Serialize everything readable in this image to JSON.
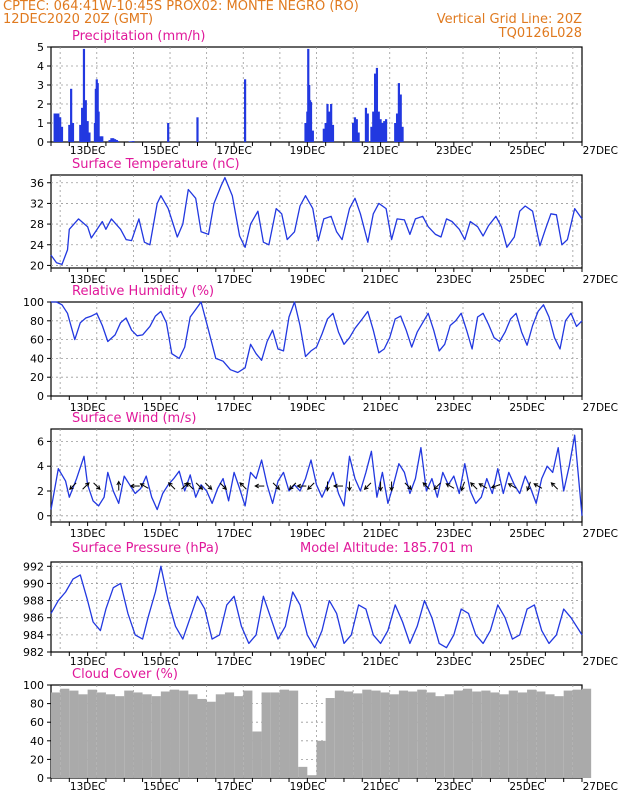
{
  "header": {
    "line1_left": "CPTEC:  064:41W-10:45S  PROX02: MONTE NEGRO (RO)",
    "line2_left": "12DEC2020 20Z (GMT)",
    "line2_right": "Vertical Grid Line: 20Z",
    "line3_right": "TQ0126L028"
  },
  "colors": {
    "header": "#e07a1f",
    "title": "#e0189a",
    "series": "#2238e0",
    "bars": "#2238e0",
    "cloud": "#aaaaaa",
    "grid": "#9a9a9a",
    "arrow": "#000000"
  },
  "x_tick_labels": [
    "13DEC",
    "15DEC",
    "17DEC",
    "19DEC",
    "21DEC",
    "23DEC",
    "25DEC",
    "27DEC"
  ],
  "chart_data": [
    {
      "type": "bar",
      "title": "Precipitation (mm/h)",
      "ylim": [
        0,
        5
      ],
      "yticks": [
        0,
        1,
        2,
        3,
        4,
        5
      ],
      "x": [
        0.2,
        0.3,
        0.4,
        0.5,
        0.6,
        1.0,
        1.1,
        1.2,
        1.6,
        1.7,
        1.8,
        1.9,
        2.0,
        2.1,
        2.4,
        2.45,
        2.5,
        2.55,
        2.6,
        2.7,
        2.8,
        3.2,
        3.3,
        3.4,
        3.45,
        3.5,
        3.55,
        3.6,
        3.65,
        4.3,
        4.4,
        4.5,
        6.4,
        8.0,
        10.6,
        13.9,
        14.0,
        14.05,
        14.1,
        14.15,
        14.2,
        14.3,
        14.9,
        15.0,
        15.1,
        15.15,
        15.2,
        15.3,
        15.4,
        16.5,
        16.6,
        16.7,
        16.8,
        17.2,
        17.3,
        17.5,
        17.6,
        17.7,
        17.8,
        17.9,
        18.0,
        18.1,
        18.2,
        18.3,
        18.8,
        18.9,
        19.0,
        19.1,
        19.2
      ],
      "values": [
        1.5,
        1.5,
        1.5,
        1.3,
        0.8,
        0.9,
        2.8,
        1.0,
        0.9,
        1.8,
        4.9,
        2.2,
        1.1,
        0.5,
        1.0,
        2.8,
        3.3,
        3.1,
        1.6,
        0.3,
        0.3,
        0.1,
        0.2,
        0.2,
        0.1,
        0.15,
        0.1,
        0.1,
        0.05,
        0.03,
        0.04,
        0.05,
        1.0,
        1.3,
        3.3,
        1.0,
        1.6,
        4.9,
        3.0,
        2.2,
        2.1,
        0.6,
        0.7,
        1.0,
        2.0,
        1.5,
        1.6,
        2.0,
        0.9,
        1.0,
        1.3,
        1.2,
        0.5,
        1.8,
        1.5,
        0.8,
        1.6,
        3.6,
        3.9,
        1.6,
        1.2,
        1.0,
        1.1,
        1.2,
        1.0,
        1.5,
        3.1,
        2.5,
        0.8
      ]
    },
    {
      "type": "line",
      "title": "Surface Temperature (nC)",
      "ylim": [
        19.5,
        37.5
      ],
      "yticks": [
        20,
        24,
        28,
        32,
        36
      ],
      "x": [
        0,
        0.3,
        0.6,
        0.9,
        1.0,
        1.5,
        2.0,
        2.2,
        2.8,
        3.0,
        3.3,
        3.8,
        4.1,
        4.4,
        4.8,
        5.1,
        5.4,
        5.8,
        6.0,
        6.4,
        6.9,
        7.2,
        7.5,
        7.9,
        8.2,
        8.6,
        8.9,
        9.3,
        9.5,
        9.9,
        10.3,
        10.6,
        10.9,
        11.3,
        11.6,
        11.9,
        12.3,
        12.6,
        12.9,
        13.3,
        13.6,
        13.9,
        14.3,
        14.6,
        14.9,
        15.3,
        15.6,
        15.9,
        16.3,
        16.6,
        16.9,
        17.3,
        17.6,
        17.9,
        18.3,
        18.6,
        18.9,
        19.3,
        19.6,
        19.9,
        20.3,
        20.6,
        21.0,
        21.3,
        21.6,
        21.9,
        22.3,
        22.6,
        22.9,
        23.3,
        23.6,
        23.9,
        24.3,
        24.6,
        24.9,
        25.3,
        25.6,
        25.9,
        26.3,
        26.7,
        27.0,
        27.3,
        27.6,
        27.9,
        28.2,
        28.6,
        29.0
      ],
      "values": [
        22,
        20.5,
        20.2,
        23,
        27,
        29,
        27.5,
        25.3,
        28.5,
        27,
        29,
        27,
        25,
        24.8,
        29,
        24.5,
        24,
        32,
        33.5,
        31,
        25.5,
        28,
        34.7,
        33,
        26.5,
        26,
        32,
        35.5,
        37,
        33.5,
        25.7,
        23.5,
        28,
        30.5,
        24.5,
        24,
        31,
        30,
        25,
        26.5,
        31.5,
        33.5,
        31,
        24.8,
        29,
        29.5,
        26.5,
        25,
        31,
        33,
        30,
        24.5,
        30,
        32,
        31,
        25,
        29,
        28.8,
        26,
        29,
        29.5,
        27.5,
        26,
        25.5,
        29,
        28.5,
        27,
        25,
        28.5,
        27.5,
        25.7,
        27.7,
        29.5,
        27.5,
        23.5,
        25.5,
        30.5,
        31.5,
        30.5,
        23.8,
        27,
        30,
        29.8,
        24,
        25,
        31,
        29
      ]
    },
    {
      "type": "line",
      "title": "Relative Humidity (%)",
      "ylim": [
        0,
        100
      ],
      "yticks": [
        0,
        20,
        40,
        60,
        80,
        100
      ],
      "x": [
        0,
        0.3,
        0.6,
        0.9,
        1.3,
        1.6,
        1.9,
        2.2,
        2.5,
        2.8,
        3.1,
        3.5,
        3.8,
        4.1,
        4.4,
        4.7,
        5.0,
        5.4,
        5.7,
        6.0,
        6.3,
        6.6,
        7.0,
        7.3,
        7.6,
        7.9,
        8.2,
        8.6,
        9.0,
        9.4,
        9.8,
        10.2,
        10.6,
        10.9,
        11.2,
        11.5,
        11.8,
        12.1,
        12.4,
        12.7,
        13.0,
        13.3,
        13.6,
        13.9,
        14.2,
        14.5,
        14.8,
        15.1,
        15.4,
        15.7,
        16.0,
        16.3,
        16.6,
        17.0,
        17.3,
        17.6,
        17.9,
        18.2,
        18.5,
        18.8,
        19.1,
        19.4,
        19.7,
        20.0,
        20.3,
        20.6,
        20.9,
        21.2,
        21.5,
        21.8,
        22.1,
        22.4,
        22.7,
        23.0,
        23.3,
        23.6,
        23.9,
        24.2,
        24.5,
        24.8,
        25.1,
        25.4,
        25.7,
        26.0,
        26.3,
        26.6,
        26.9,
        27.2,
        27.5,
        27.8,
        28.1,
        28.4,
        28.7,
        29.0
      ],
      "values": [
        100,
        100,
        97,
        88,
        60,
        78,
        83,
        85,
        88,
        75,
        58,
        65,
        78,
        83,
        70,
        64,
        65,
        74,
        85,
        90,
        78,
        45,
        40,
        52,
        84,
        92,
        100,
        70,
        40,
        37,
        28,
        25,
        30,
        55,
        45,
        38,
        58,
        70,
        50,
        48,
        84,
        100,
        75,
        42,
        48,
        52,
        66,
        82,
        88,
        68,
        55,
        62,
        72,
        82,
        90,
        70,
        46,
        50,
        62,
        82,
        85,
        70,
        52,
        68,
        78,
        88,
        70,
        48,
        55,
        75,
        80,
        88,
        70,
        50,
        84,
        88,
        76,
        62,
        58,
        68,
        82,
        88,
        68,
        54,
        75,
        90,
        97,
        84,
        62,
        50,
        80,
        88,
        74,
        80
      ]
    },
    {
      "type": "line",
      "title": "Surface Wind (m/s)",
      "ylim": [
        -0.5,
        7
      ],
      "yticks": [
        0,
        2,
        4,
        6
      ],
      "x": [
        0,
        0.4,
        0.8,
        1.0,
        1.4,
        1.8,
        2.0,
        2.3,
        2.6,
        2.9,
        3.1,
        3.4,
        3.7,
        4.0,
        4.3,
        4.6,
        4.9,
        5.2,
        5.5,
        5.8,
        6.1,
        6.4,
        6.7,
        7.0,
        7.3,
        7.6,
        7.9,
        8.2,
        8.5,
        8.8,
        9.1,
        9.4,
        9.7,
        10.0,
        10.3,
        10.6,
        10.9,
        11.2,
        11.5,
        11.8,
        12.1,
        12.4,
        12.7,
        13.0,
        13.3,
        13.6,
        13.9,
        14.2,
        14.5,
        14.8,
        15.1,
        15.4,
        15.7,
        16.0,
        16.3,
        16.6,
        16.9,
        17.2,
        17.5,
        17.8,
        18.1,
        18.4,
        18.7,
        19.0,
        19.3,
        19.6,
        19.9,
        20.2,
        20.5,
        20.8,
        21.1,
        21.4,
        21.7,
        22.0,
        22.3,
        22.6,
        22.9,
        23.2,
        23.5,
        23.8,
        24.1,
        24.4,
        24.7,
        25.0,
        25.3,
        25.6,
        25.9,
        26.2,
        26.5,
        26.8,
        27.1,
        27.4,
        27.7,
        28.0,
        28.3,
        28.6,
        29.0
      ],
      "values": [
        0.5,
        3.8,
        2.8,
        1.5,
        3.0,
        4.8,
        2.5,
        1.2,
        0.8,
        1.5,
        3.5,
        2.0,
        1.0,
        3.2,
        2.5,
        1.8,
        2.2,
        3.2,
        1.5,
        0.5,
        1.8,
        2.5,
        3.0,
        3.6,
        2.0,
        3.3,
        1.5,
        2.5,
        2.0,
        1.0,
        2.2,
        3.0,
        1.2,
        3.5,
        2.2,
        0.8,
        3.5,
        3.0,
        4.5,
        2.5,
        1.0,
        2.8,
        3.5,
        2.0,
        2.5,
        2.0,
        3.0,
        4.5,
        2.5,
        1.5,
        2.5,
        3.5,
        1.8,
        0.8,
        4.8,
        3.0,
        2.0,
        3.5,
        5.2,
        1.5,
        3.5,
        1.0,
        2.5,
        4.2,
        3.5,
        1.8,
        3.0,
        5.5,
        2.0,
        3.0,
        1.5,
        3.5,
        2.5,
        3.2,
        1.8,
        4.2,
        2.0,
        1.0,
        1.5,
        3.0,
        1.8,
        3.8,
        1.8,
        3.5,
        2.5,
        1.8,
        3.2,
        2.2,
        1.0,
        3.0,
        4.0,
        3.5,
        5.5,
        2.0,
        4.0,
        6.5,
        0.0
      ]
    },
    {
      "type": "line",
      "title": "Surface Pressure (hPa)",
      "annotation": "Model Altitude: 185.701 m",
      "ylim": [
        982,
        992.5
      ],
      "yticks": [
        982,
        984,
        986,
        988,
        990,
        992
      ],
      "x": [
        0,
        0.4,
        0.8,
        1.2,
        1.6,
        2.0,
        2.3,
        2.7,
        3.0,
        3.4,
        3.8,
        4.2,
        4.6,
        5.0,
        5.3,
        5.7,
        6.0,
        6.4,
        6.8,
        7.2,
        7.6,
        8.0,
        8.4,
        8.8,
        9.2,
        9.6,
        10.0,
        10.4,
        10.8,
        11.2,
        11.6,
        12.0,
        12.4,
        12.8,
        13.2,
        13.6,
        14.0,
        14.4,
        14.8,
        15.2,
        15.6,
        16.0,
        16.4,
        16.8,
        17.2,
        17.6,
        18.0,
        18.4,
        18.8,
        19.2,
        19.6,
        20.0,
        20.4,
        20.8,
        21.2,
        21.6,
        22.0,
        22.4,
        22.8,
        23.2,
        23.6,
        24.0,
        24.4,
        24.8,
        25.2,
        25.6,
        26.0,
        26.4,
        26.8,
        27.2,
        27.6,
        28.0,
        28.4,
        29.0
      ],
      "values": [
        986.5,
        988,
        989,
        990.5,
        991,
        988,
        985.5,
        984.5,
        987,
        989.5,
        990,
        986.5,
        984,
        983.5,
        986,
        989,
        992,
        988,
        985,
        983.5,
        986,
        988.5,
        987,
        983.5,
        984,
        987.5,
        988.5,
        985,
        983,
        984,
        988.5,
        986,
        983.5,
        985,
        989,
        987.5,
        984,
        982.5,
        984.5,
        988,
        986.5,
        983,
        984,
        987.5,
        987,
        984,
        983,
        984.5,
        987.5,
        985.5,
        983,
        985,
        988,
        986,
        983,
        982.5,
        984,
        987,
        986.5,
        984,
        983,
        984.5,
        987.5,
        986,
        983.5,
        984,
        987,
        987.5,
        984.5,
        983,
        984,
        987,
        986,
        984
      ]
    },
    {
      "type": "bar",
      "title": "Cloud Cover (%)",
      "ylim": [
        0,
        100
      ],
      "yticks": [
        0,
        20,
        40,
        60,
        80,
        100
      ],
      "x": [
        0,
        0.5,
        1.0,
        1.5,
        2.0,
        2.5,
        3.0,
        3.5,
        4.0,
        4.5,
        5.0,
        5.5,
        6.0,
        6.5,
        7.0,
        7.5,
        8.0,
        8.5,
        9.0,
        9.5,
        10.0,
        10.5,
        11.0,
        11.5,
        12.0,
        12.5,
        13.0,
        13.5,
        14.0,
        14.5,
        15.0,
        15.5,
        16.0,
        16.5,
        17.0,
        17.5,
        18.0,
        18.5,
        19.0,
        19.5,
        20.0,
        20.5,
        21.0,
        21.5,
        22.0,
        22.5,
        23.0,
        23.5,
        24.0,
        24.5,
        25.0,
        25.5,
        26.0,
        26.5,
        27.0,
        27.5,
        28.0,
        28.5,
        29.0
      ],
      "values": [
        92,
        96,
        94,
        90,
        95,
        92,
        90,
        88,
        94,
        92,
        90,
        88,
        93,
        95,
        94,
        90,
        85,
        82,
        90,
        92,
        88,
        94,
        50,
        92,
        92,
        95,
        94,
        12,
        3,
        40,
        86,
        94,
        93,
        91,
        95,
        94,
        92,
        90,
        94,
        93,
        95,
        92,
        88,
        90,
        94,
        96,
        93,
        94,
        92,
        90,
        94,
        92,
        95,
        93,
        90,
        88,
        94,
        95,
        96
      ]
    }
  ],
  "wind_arrows": [
    {
      "t": 1.2,
      "dir_deg": 225
    },
    {
      "t": 1.9,
      "dir_deg": 45
    },
    {
      "t": 2.5,
      "dir_deg": 135
    },
    {
      "t": 3.7,
      "dir_deg": 0
    },
    {
      "t": 4.6,
      "dir_deg": 270
    },
    {
      "t": 5.1,
      "dir_deg": 300
    },
    {
      "t": 6.6,
      "dir_deg": 315
    },
    {
      "t": 7.3,
      "dir_deg": 45
    },
    {
      "t": 7.6,
      "dir_deg": 315
    },
    {
      "t": 8.1,
      "dir_deg": 135
    },
    {
      "t": 8.6,
      "dir_deg": 135
    },
    {
      "t": 9.4,
      "dir_deg": 135
    },
    {
      "t": 10.5,
      "dir_deg": 315
    },
    {
      "t": 11.4,
      "dir_deg": 270
    },
    {
      "t": 12.3,
      "dir_deg": 135
    },
    {
      "t": 13.2,
      "dir_deg": 225
    },
    {
      "t": 13.7,
      "dir_deg": 270
    },
    {
      "t": 14.2,
      "dir_deg": 225
    },
    {
      "t": 15.1,
      "dir_deg": 180
    },
    {
      "t": 15.7,
      "dir_deg": 270
    },
    {
      "t": 16.3,
      "dir_deg": 180
    },
    {
      "t": 17.3,
      "dir_deg": 225
    },
    {
      "t": 18.0,
      "dir_deg": 180
    },
    {
      "t": 18.6,
      "dir_deg": 180
    },
    {
      "t": 19.5,
      "dir_deg": 135
    },
    {
      "t": 20.5,
      "dir_deg": 315
    },
    {
      "t": 21.1,
      "dir_deg": 225
    },
    {
      "t": 21.8,
      "dir_deg": 300
    },
    {
      "t": 22.5,
      "dir_deg": 200
    },
    {
      "t": 23.1,
      "dir_deg": 315
    },
    {
      "t": 23.6,
      "dir_deg": 300
    },
    {
      "t": 24.3,
      "dir_deg": 250
    },
    {
      "t": 25.2,
      "dir_deg": 300
    },
    {
      "t": 26.1,
      "dir_deg": 200
    },
    {
      "t": 26.6,
      "dir_deg": 300
    },
    {
      "t": 27.5,
      "dir_deg": 315
    }
  ]
}
